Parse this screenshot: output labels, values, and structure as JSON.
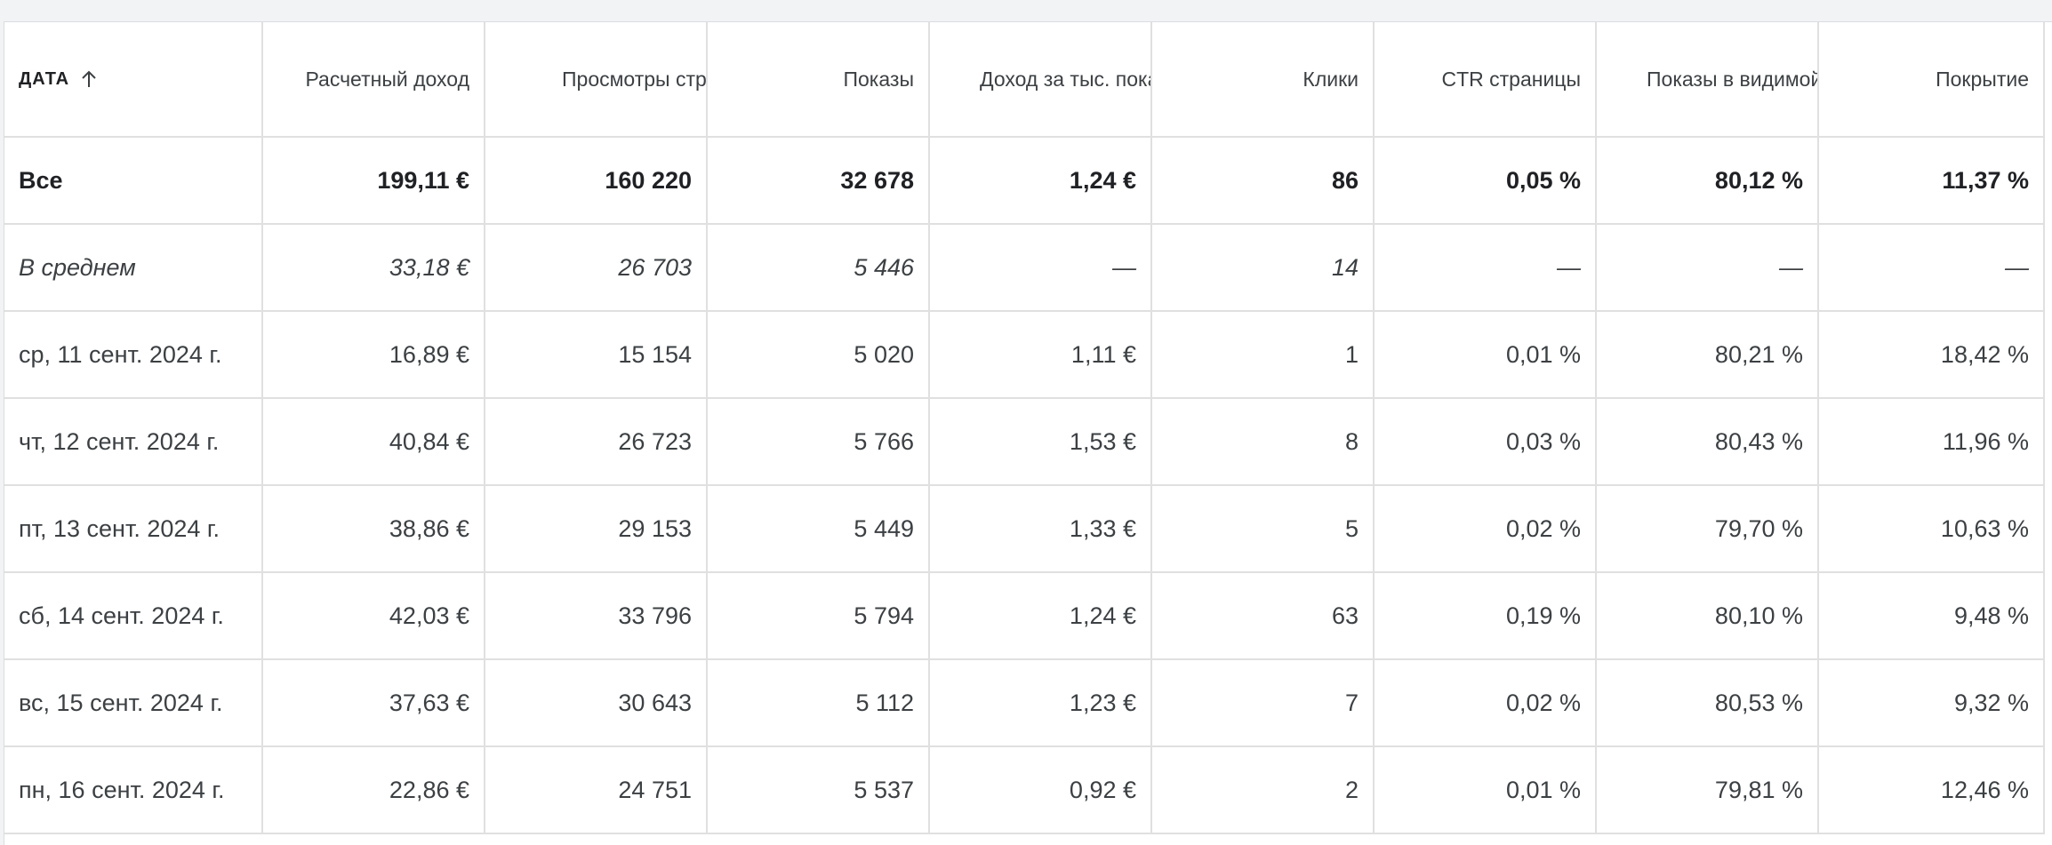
{
  "table": {
    "columns": [
      {
        "key": "date",
        "label": "ДАТА",
        "sort": "ascending"
      },
      {
        "key": "revenue",
        "label": "Расчетный доход"
      },
      {
        "key": "pageviews",
        "label": "Просмотры страниц"
      },
      {
        "key": "impressions",
        "label": "Показы"
      },
      {
        "key": "page_rpm",
        "label": "Доход за тыс. показов страницы"
      },
      {
        "key": "clicks",
        "label": "Клики"
      },
      {
        "key": "page_ctr",
        "label": "CTR страницы"
      },
      {
        "key": "viewability",
        "label": "Показы в видимой части экрана"
      },
      {
        "key": "coverage",
        "label": "Покрытие"
      }
    ],
    "total": [
      "Все",
      "199,11 €",
      "160 220",
      "32 678",
      "1,24 €",
      "86",
      "0,05 %",
      "80,12 %",
      "11,37 %"
    ],
    "average": [
      "В среднем",
      "33,18 €",
      "26 703",
      "5 446",
      "—",
      "14",
      "—",
      "—",
      "—"
    ],
    "rows": [
      [
        "ср, 11 сент. 2024 г.",
        "16,89 €",
        "15 154",
        "5 020",
        "1,11 €",
        "1",
        "0,01 %",
        "80,21 %",
        "18,42 %"
      ],
      [
        "чт, 12 сент. 2024 г.",
        "40,84 €",
        "26 723",
        "5 766",
        "1,53 €",
        "8",
        "0,03 %",
        "80,43 %",
        "11,96 %"
      ],
      [
        "пт, 13 сент. 2024 г.",
        "38,86 €",
        "29 153",
        "5 449",
        "1,33 €",
        "5",
        "0,02 %",
        "79,70 %",
        "10,63 %"
      ],
      [
        "сб, 14 сент. 2024 г.",
        "42,03 €",
        "33 796",
        "5 794",
        "1,24 €",
        "63",
        "0,19 %",
        "80,10 %",
        "9,48 %"
      ],
      [
        "вс, 15 сент. 2024 г.",
        "37,63 €",
        "30 643",
        "5 112",
        "1,23 €",
        "7",
        "0,02 %",
        "80,53 %",
        "9,32 %"
      ],
      [
        "пн, 16 сент. 2024 г.",
        "22,86 €",
        "24 751",
        "5 537",
        "0,92 €",
        "2",
        "0,01 %",
        "79,81 %",
        "12,46 %"
      ]
    ]
  },
  "icons": {
    "sort": "arrow-up-icon"
  },
  "colors": {
    "grid_line": "#e0e0e0",
    "text": "#3c4043",
    "background": "#ffffff"
  }
}
